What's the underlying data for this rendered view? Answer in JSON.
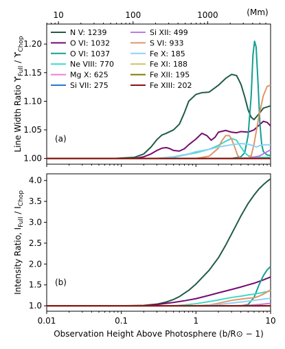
{
  "chart_data": [
    {
      "type": "line",
      "panel_label": "(a)",
      "ylabel": "Line Width Ratio ϒ_Full / ϒ_Chop",
      "ylabel_parts": {
        "main": "Line Width Ratio ϒ",
        "sub1": "Full",
        "mid": " / ϒ",
        "sub2": "Chop"
      },
      "xscale": "log",
      "xlim": [
        0.01,
        10
      ],
      "ylim": [
        0.99,
        1.235
      ],
      "yticks": [
        1.0,
        1.05,
        1.1,
        1.15,
        1.2
      ],
      "ytick_labels": [
        "1.00",
        "1.05",
        "1.10",
        "1.15",
        "1.20"
      ],
      "top_axis": {
        "label": "(Mm)",
        "ticks": [
          10,
          100,
          1000
        ],
        "tick_labels": [
          "10",
          "100",
          "1000"
        ],
        "unit_scale": 696
      },
      "legend": {
        "placement": "upper-left",
        "columns": 2
      },
      "series": [
        {
          "name": "N V: 1239",
          "color": "#1e5a46",
          "x": [
            0.01,
            0.08,
            0.15,
            0.2,
            0.25,
            0.3,
            0.35,
            0.4,
            0.5,
            0.6,
            0.7,
            0.8,
            1.0,
            1.2,
            1.5,
            2.0,
            2.5,
            3.0,
            3.5,
            4.0,
            4.5,
            5.0,
            5.5,
            6.0,
            7.0,
            8.0,
            10.0
          ],
          "y": [
            1.0,
            1.0,
            1.002,
            1.008,
            1.02,
            1.033,
            1.041,
            1.044,
            1.05,
            1.06,
            1.08,
            1.1,
            1.112,
            1.115,
            1.116,
            1.128,
            1.14,
            1.147,
            1.145,
            1.13,
            1.108,
            1.085,
            1.072,
            1.068,
            1.078,
            1.088,
            1.092
          ]
        },
        {
          "name": "O VI: 1032",
          "color": "#750a6e",
          "x": [
            0.01,
            0.15,
            0.2,
            0.25,
            0.3,
            0.35,
            0.4,
            0.45,
            0.5,
            0.6,
            0.7,
            0.8,
            1.0,
            1.2,
            1.4,
            1.6,
            1.8,
            2.0,
            2.5,
            3.0,
            3.5,
            4.0,
            5.0,
            6.0,
            7.0,
            8.0,
            9.0,
            10.0
          ],
          "y": [
            1.0,
            1.0,
            1.003,
            1.008,
            1.014,
            1.018,
            1.019,
            1.017,
            1.014,
            1.013,
            1.017,
            1.024,
            1.034,
            1.044,
            1.04,
            1.032,
            1.037,
            1.046,
            1.049,
            1.046,
            1.045,
            1.047,
            1.046,
            1.05,
            1.058,
            1.065,
            1.063,
            1.057
          ]
        },
        {
          "name": "O VI: 1037",
          "color": "#119f95",
          "x": [
            0.01,
            2.0,
            3.0,
            4.0,
            4.5,
            5.0,
            5.5,
            5.8,
            6.1,
            6.4,
            6.8,
            7.2,
            7.6,
            8.0,
            9.0,
            10.0
          ],
          "y": [
            1.0,
            1.0,
            1.0,
            1.003,
            1.01,
            1.04,
            1.11,
            1.18,
            1.205,
            1.195,
            1.13,
            1.06,
            1.025,
            1.012,
            1.006,
            1.005
          ]
        },
        {
          "name": "Ne VIII: 770",
          "color": "#3fd8c7",
          "x": [
            0.01,
            0.3,
            0.5,
            0.7,
            1.0,
            1.5,
            2.0,
            2.5,
            3.0,
            3.5,
            4.0,
            4.5,
            5.0,
            5.5,
            6.0,
            7.0,
            8.0,
            10.0
          ],
          "y": [
            1.0,
            1.0,
            1.002,
            1.006,
            1.01,
            1.016,
            1.023,
            1.03,
            1.035,
            1.032,
            1.02,
            1.01,
            1.005,
            1.003,
            1.002,
            1.002,
            1.002,
            1.002
          ]
        },
        {
          "name": "Mg X: 625",
          "color": "#f07cd2",
          "x": [
            0.01,
            10.0
          ],
          "y": [
            1.0,
            1.0
          ]
        },
        {
          "name": "Si VII: 275",
          "color": "#2277d6",
          "x": [
            0.01,
            10.0
          ],
          "y": [
            1.0,
            1.0
          ]
        },
        {
          "name": "Si XII: 499",
          "color": "#b77ae8",
          "x": [
            0.01,
            3.0,
            5.0,
            7.0,
            8.0,
            9.0,
            10.0
          ],
          "y": [
            1.0,
            1.0,
            1.001,
            1.004,
            1.008,
            1.012,
            1.015
          ]
        },
        {
          "name": "S VI: 933",
          "color": "#e29468",
          "x": [
            0.01,
            1.0,
            1.5,
            2.0,
            2.2,
            2.5,
            2.8,
            3.0,
            3.3,
            3.6,
            4.0,
            4.5,
            5.0,
            5.5,
            6.0,
            7.0,
            8.0,
            9.0,
            10.0
          ],
          "y": [
            1.0,
            1.0,
            1.004,
            1.018,
            1.03,
            1.04,
            1.04,
            1.034,
            1.02,
            1.006,
            1.0,
            1.0,
            1.0,
            1.005,
            1.025,
            1.075,
            1.11,
            1.126,
            1.128
          ]
        },
        {
          "name": "Fe X: 185",
          "color": "#8ed0f4",
          "x": [
            0.01,
            0.3,
            0.5,
            0.8,
            1.0,
            1.5,
            2.0,
            3.0,
            4.0,
            5.0,
            6.0,
            6.5,
            7.0,
            8.0,
            10.0
          ],
          "y": [
            1.0,
            1.0,
            1.003,
            1.008,
            1.012,
            1.016,
            1.02,
            1.024,
            1.026,
            1.025,
            1.022,
            1.02,
            1.022,
            1.024,
            1.024
          ]
        },
        {
          "name": "Fe XI: 188",
          "color": "#c9c46a",
          "x": [
            0.01,
            10.0
          ],
          "y": [
            1.0,
            1.0
          ]
        },
        {
          "name": "Fe XII: 195",
          "color": "#7d7a00",
          "x": [
            0.01,
            10.0
          ],
          "y": [
            1.0,
            1.0
          ]
        },
        {
          "name": "Fe XIII: 202",
          "color": "#8e0f0f",
          "x": [
            0.01,
            10.0
          ],
          "y": [
            1.0,
            1.0
          ]
        }
      ]
    },
    {
      "type": "line",
      "panel_label": "(b)",
      "ylabel": "Intensity Ratio, I_Full / I_Chop",
      "ylabel_parts": {
        "main": "Intensity Ratio, I",
        "sub1": "Full",
        "mid": " / I",
        "sub2": "Chop"
      },
      "xlabel": "Observation Height Above Photosphere (b/R⊙ − 1)",
      "xscale": "log",
      "xlim": [
        0.01,
        10
      ],
      "ylim": [
        0.87,
        4.16
      ],
      "xticks": [
        0.01,
        0.1,
        1,
        10
      ],
      "xtick_labels": [
        "0.01",
        "0.1",
        "1",
        "10"
      ],
      "yticks": [
        1.0,
        1.5,
        2.0,
        2.5,
        3.0,
        3.5,
        4.0
      ],
      "ytick_labels": [
        "1.0",
        "1.5",
        "2.0",
        "2.5",
        "3.0",
        "3.5",
        "4.0"
      ],
      "series": [
        {
          "name": "N V: 1239",
          "color": "#1e5a46",
          "x": [
            0.01,
            0.1,
            0.2,
            0.3,
            0.4,
            0.5,
            0.6,
            0.8,
            1.0,
            1.5,
            2.0,
            2.5,
            3.0,
            3.5,
            4.0,
            5.0,
            6.0,
            7.0,
            8.0,
            9.0,
            10.0
          ],
          "y": [
            1.0,
            1.0,
            1.01,
            1.04,
            1.09,
            1.15,
            1.22,
            1.37,
            1.52,
            1.85,
            2.15,
            2.45,
            2.72,
            2.95,
            3.15,
            3.45,
            3.65,
            3.8,
            3.9,
            3.98,
            4.04
          ]
        },
        {
          "name": "O VI: 1032",
          "color": "#750a6e",
          "x": [
            0.01,
            0.2,
            0.3,
            0.5,
            0.7,
            1.0,
            1.5,
            2.0,
            3.0,
            4.0,
            5.0,
            6.0,
            8.0,
            10.0
          ],
          "y": [
            1.0,
            1.0,
            1.03,
            1.08,
            1.12,
            1.17,
            1.25,
            1.31,
            1.39,
            1.45,
            1.5,
            1.54,
            1.62,
            1.69
          ]
        },
        {
          "name": "O VI: 1037",
          "color": "#119f95",
          "x": [
            0.01,
            4.0,
            5.0,
            6.0,
            7.0,
            8.0,
            9.0,
            10.0
          ],
          "y": [
            1.0,
            1.0,
            1.03,
            1.2,
            1.5,
            1.72,
            1.86,
            1.94
          ]
        },
        {
          "name": "Ne VIII: 770",
          "color": "#3fd8c7",
          "x": [
            0.01,
            0.5,
            0.7,
            1.0,
            1.5,
            2.0,
            3.0,
            4.0,
            5.0,
            6.0,
            8.0,
            10.0
          ],
          "y": [
            1.0,
            1.0,
            1.02,
            1.05,
            1.1,
            1.14,
            1.2,
            1.23,
            1.26,
            1.28,
            1.32,
            1.36
          ]
        },
        {
          "name": "Mg X: 625",
          "color": "#f07cd2",
          "x": [
            0.01,
            10.0
          ],
          "y": [
            1.0,
            1.0
          ]
        },
        {
          "name": "Si VII: 275",
          "color": "#2277d6",
          "x": [
            0.01,
            10.0
          ],
          "y": [
            1.0,
            1.0
          ]
        },
        {
          "name": "Si XII: 499",
          "color": "#b77ae8",
          "x": [
            0.01,
            3.0,
            5.0,
            7.0,
            10.0
          ],
          "y": [
            1.0,
            1.0,
            1.01,
            1.03,
            1.06
          ]
        },
        {
          "name": "S VI: 933",
          "color": "#e29468",
          "x": [
            0.01,
            1.0,
            1.5,
            2.0,
            3.0,
            4.0,
            5.0,
            6.0,
            7.0,
            8.0,
            10.0
          ],
          "y": [
            1.0,
            1.0,
            1.02,
            1.06,
            1.13,
            1.16,
            1.18,
            1.19,
            1.23,
            1.28,
            1.38
          ]
        },
        {
          "name": "Fe X: 185",
          "color": "#8ed0f4",
          "x": [
            0.01,
            1.0,
            2.0,
            4.0,
            6.0,
            10.0
          ],
          "y": [
            1.0,
            1.0,
            1.03,
            1.09,
            1.13,
            1.18
          ]
        },
        {
          "name": "Fe XI: 188",
          "color": "#c9c46a",
          "x": [
            0.01,
            10.0
          ],
          "y": [
            1.0,
            1.0
          ]
        },
        {
          "name": "Fe XII: 195",
          "color": "#7d7a00",
          "x": [
            0.01,
            10.0
          ],
          "y": [
            1.0,
            1.0
          ]
        },
        {
          "name": "Fe XIII: 202",
          "color": "#8e0f0f",
          "x": [
            0.01,
            10.0
          ],
          "y": [
            1.0,
            1.0
          ]
        }
      ]
    }
  ]
}
